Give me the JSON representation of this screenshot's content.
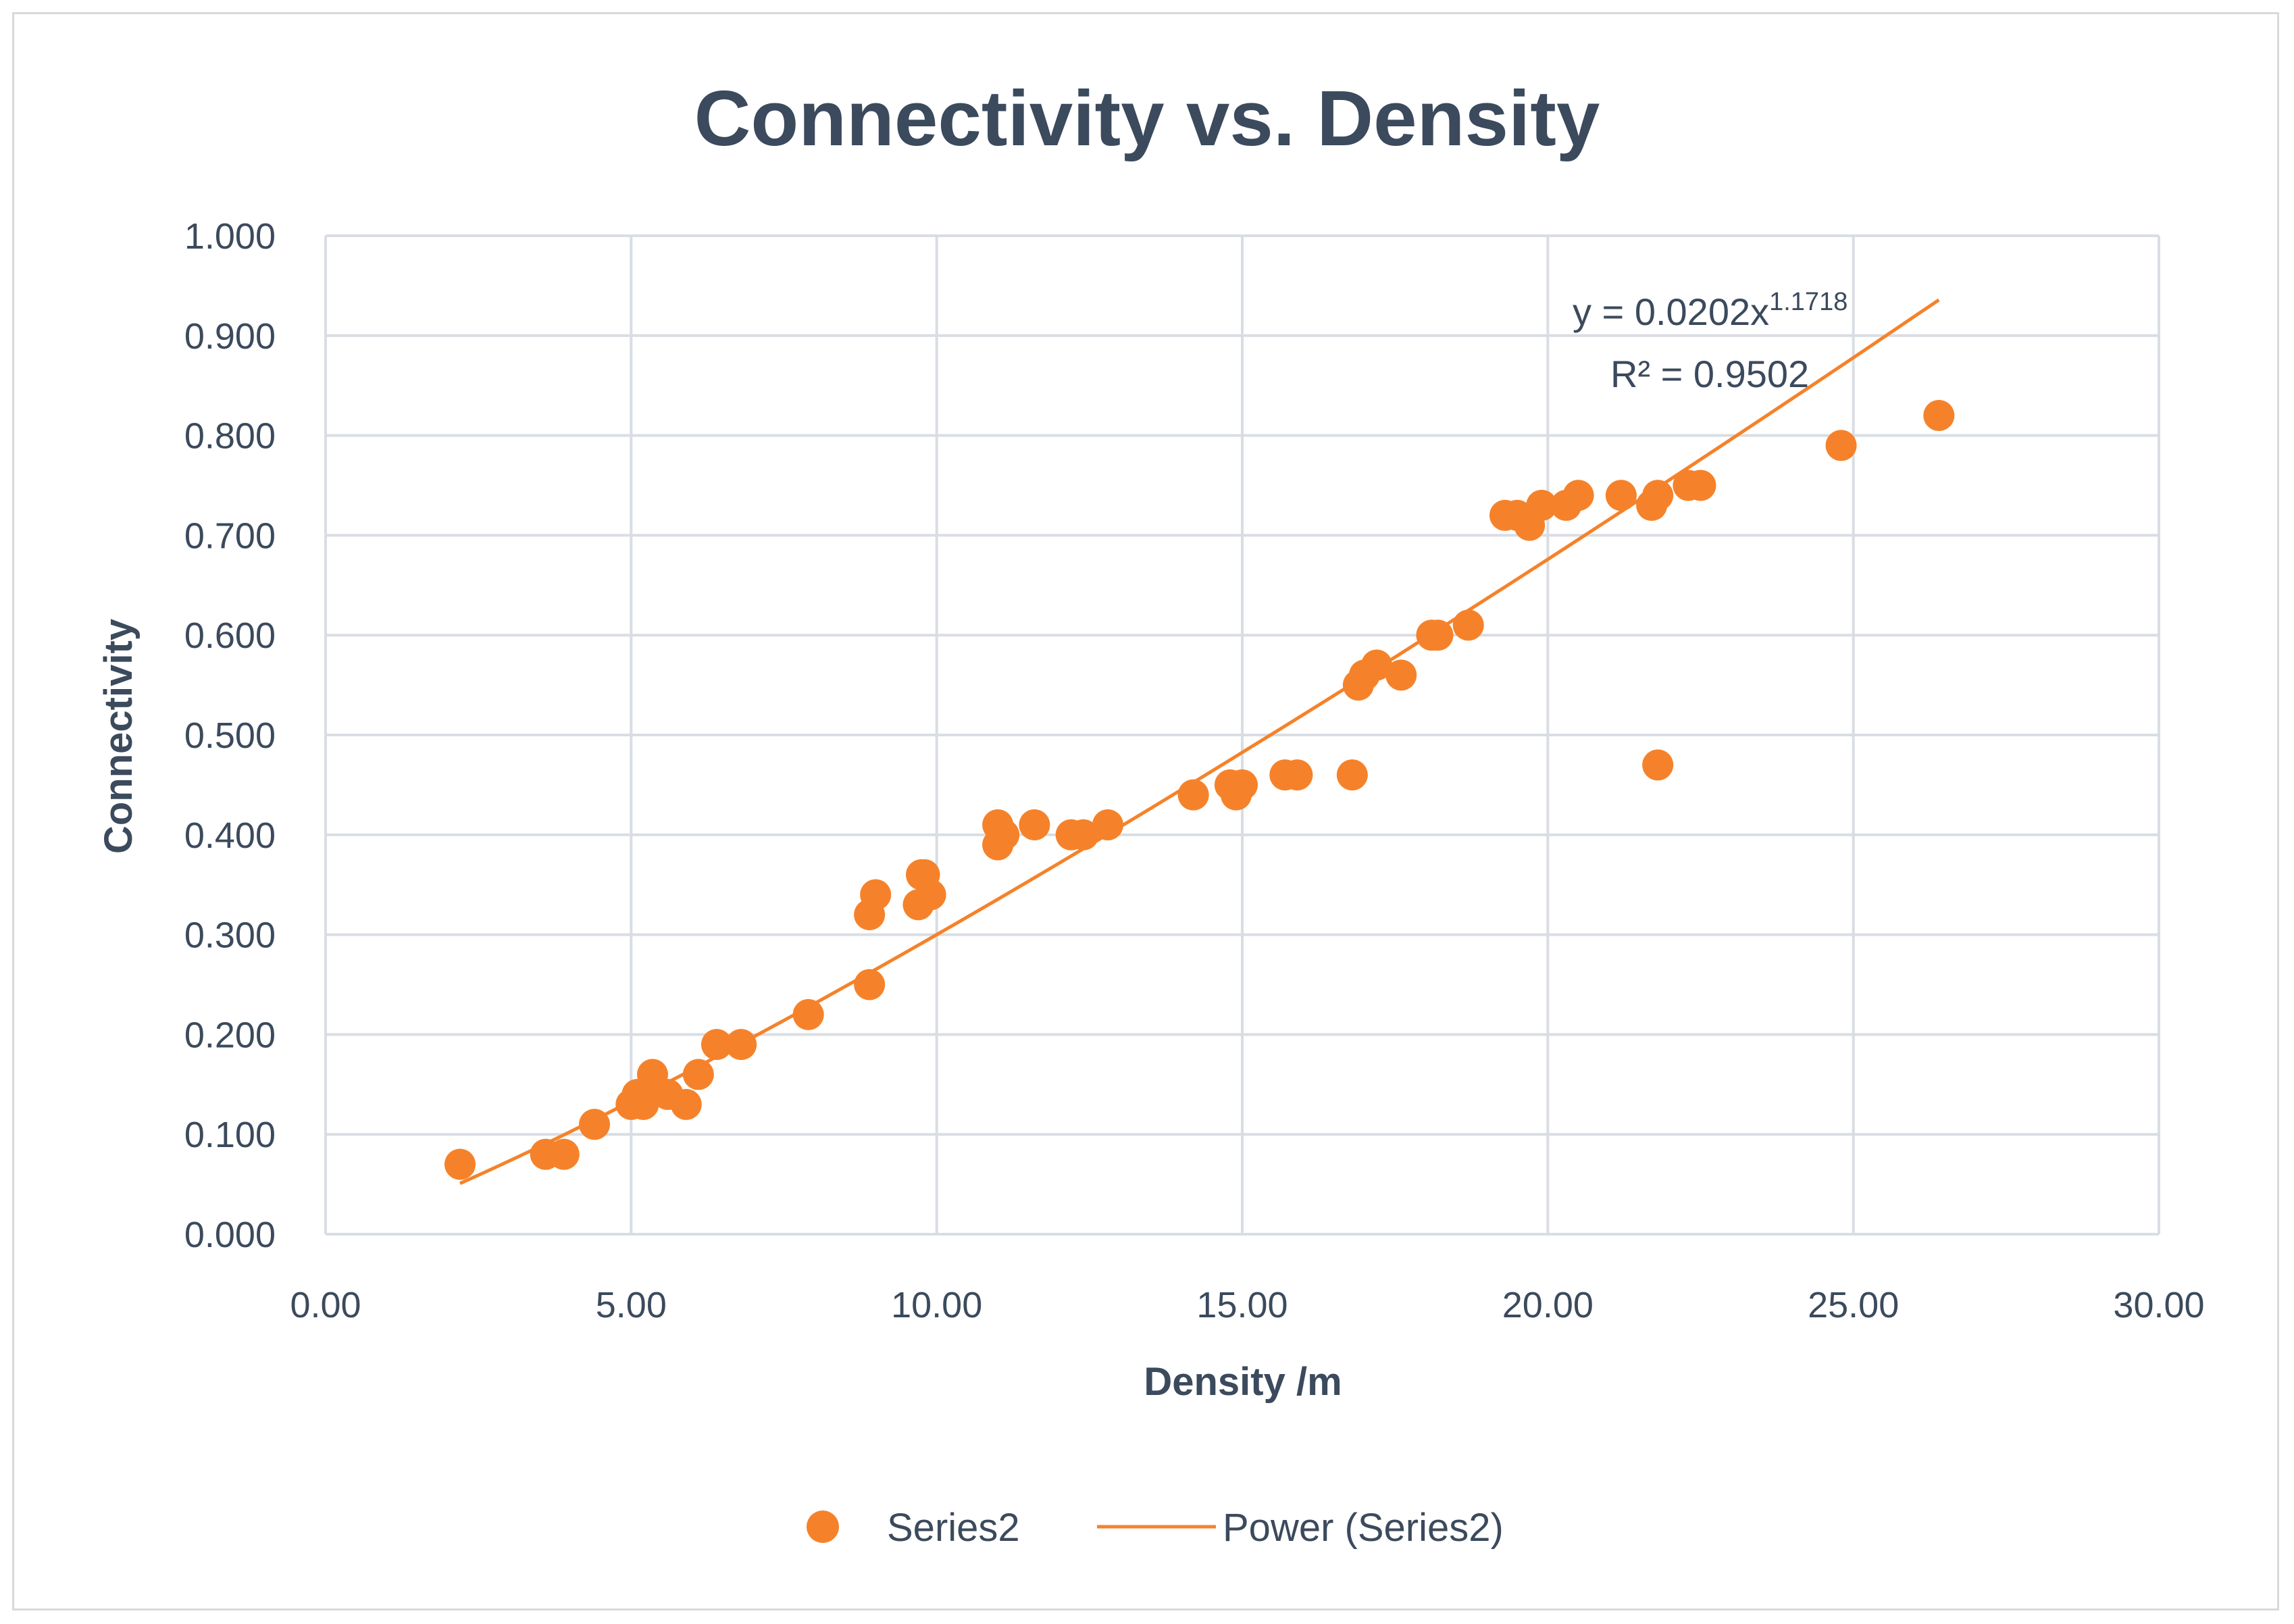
{
  "chart_data": {
    "type": "scatter",
    "title": "Connectivity vs. Density",
    "xlabel": "Density /m",
    "ylabel": "Connectivity",
    "xlim": [
      0,
      30
    ],
    "ylim": [
      0,
      1
    ],
    "xticks": [
      "0.00",
      "5.00",
      "10.00",
      "15.00",
      "20.00",
      "25.00",
      "30.00"
    ],
    "yticks": [
      "0.000",
      "0.100",
      "0.200",
      "0.300",
      "0.400",
      "0.500",
      "0.600",
      "0.700",
      "0.800",
      "0.900",
      "1.000"
    ],
    "grid": true,
    "series": [
      {
        "name": "Series2",
        "color": "#f5822a",
        "points": [
          [
            2.2,
            0.07
          ],
          [
            3.6,
            0.08
          ],
          [
            3.9,
            0.08
          ],
          [
            4.4,
            0.11
          ],
          [
            5.0,
            0.13
          ],
          [
            5.1,
            0.14
          ],
          [
            5.2,
            0.13
          ],
          [
            5.3,
            0.14
          ],
          [
            5.35,
            0.16
          ],
          [
            5.6,
            0.14
          ],
          [
            5.9,
            0.13
          ],
          [
            6.1,
            0.16
          ],
          [
            6.4,
            0.19
          ],
          [
            6.8,
            0.19
          ],
          [
            7.9,
            0.22
          ],
          [
            8.9,
            0.25
          ],
          [
            8.9,
            0.32
          ],
          [
            9.0,
            0.34
          ],
          [
            9.7,
            0.33
          ],
          [
            9.75,
            0.36
          ],
          [
            9.8,
            0.36
          ],
          [
            9.9,
            0.34
          ],
          [
            11.0,
            0.39
          ],
          [
            11.0,
            0.41
          ],
          [
            11.1,
            0.4
          ],
          [
            11.6,
            0.41
          ],
          [
            12.2,
            0.4
          ],
          [
            12.4,
            0.4
          ],
          [
            12.8,
            0.41
          ],
          [
            14.2,
            0.44
          ],
          [
            14.8,
            0.45
          ],
          [
            14.9,
            0.44
          ],
          [
            15.0,
            0.45
          ],
          [
            15.7,
            0.46
          ],
          [
            15.9,
            0.46
          ],
          [
            16.8,
            0.46
          ],
          [
            16.9,
            0.55
          ],
          [
            17.0,
            0.56
          ],
          [
            17.2,
            0.57
          ],
          [
            17.6,
            0.56
          ],
          [
            18.1,
            0.6
          ],
          [
            18.2,
            0.6
          ],
          [
            18.7,
            0.61
          ],
          [
            19.3,
            0.72
          ],
          [
            19.5,
            0.72
          ],
          [
            19.7,
            0.71
          ],
          [
            19.9,
            0.73
          ],
          [
            20.3,
            0.73
          ],
          [
            20.5,
            0.74
          ],
          [
            21.2,
            0.74
          ],
          [
            21.7,
            0.73
          ],
          [
            21.8,
            0.74
          ],
          [
            21.8,
            0.47
          ],
          [
            22.3,
            0.75
          ],
          [
            22.5,
            0.75
          ],
          [
            24.8,
            0.79
          ],
          [
            26.4,
            0.82
          ]
        ]
      }
    ],
    "trendline": {
      "name": "Power (Series2)",
      "type": "power",
      "coefficient": 0.0202,
      "exponent": 1.1718,
      "x_range": [
        2.2,
        26.4
      ],
      "equation_base": "y = 0.0202x",
      "equation_exponent": "1.1718",
      "r_squared_label": "R² = 0.9502"
    },
    "legend": {
      "placement": "bottom",
      "entries": [
        "Series2",
        "Power (Series2)"
      ]
    }
  }
}
